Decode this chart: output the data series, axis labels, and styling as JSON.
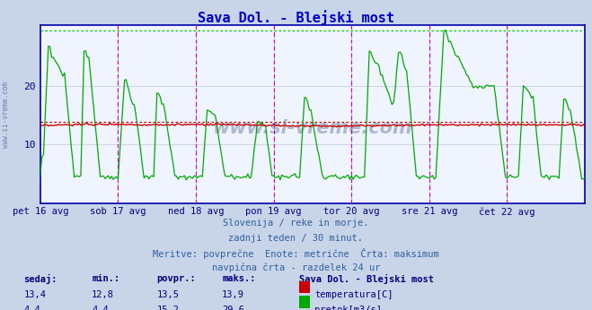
{
  "title": "Sava Dol. - Blejski most",
  "title_color": "#0000cc",
  "bg_color": "#c8d4e8",
  "plot_bg_color": "#f0f4ff",
  "xlabel_color": "#000080",
  "grid_color": "#c0c8d8",
  "x_labels": [
    "pet 16 avg",
    "sob 17 avg",
    "ned 18 avg",
    "pon 19 avg",
    "tor 20 avg",
    "sre 21 avg",
    "čet 22 avg"
  ],
  "x_ticks_pos": [
    0,
    48,
    96,
    144,
    192,
    240,
    288
  ],
  "n_points": 337,
  "temp_color": "#cc0000",
  "flow_color": "#00aa00",
  "temp_max": 13.9,
  "flow_max": 29.6,
  "y_ticks": [
    10,
    20
  ],
  "max_flow_line_color": "#00cc00",
  "temp_dotted_color": "#cc0000",
  "vline_solid_color": "#000060",
  "vline_dashed_color": "#cc00cc",
  "axis_color": "#0000aa",
  "footer_line1": "Slovenija / reke in morje.",
  "footer_line2": "zadnji teden / 30 minut.",
  "footer_line3": "Meritve: povprečne  Enote: metrične  Črta: maksimum",
  "footer_line4": "navpična črta - razdelek 24 ur",
  "table_headers": [
    "sedaj:",
    "min.:",
    "povpr.:",
    "maks.:"
  ],
  "station_name": "Sava Dol. - Blejski most",
  "table_row1": [
    "13,4",
    "12,8",
    "13,5",
    "13,9"
  ],
  "table_row2": [
    "4,4",
    "4,4",
    "15,2",
    "29,6"
  ],
  "label_temp": "temperatura[C]",
  "label_flow": "pretok[m3/s]",
  "watermark": "www.si-vreme.com",
  "left_label": "www.si-vreme.com",
  "text_color": "#3060a0"
}
